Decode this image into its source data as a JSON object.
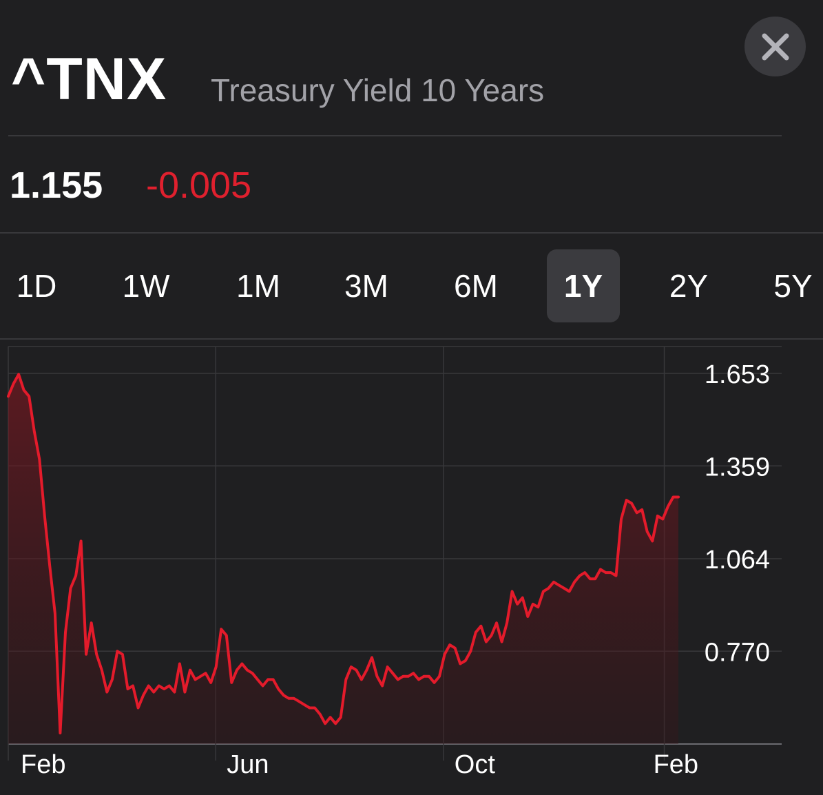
{
  "header": {
    "symbol": "^TNX",
    "name": "Treasury Yield 10 Years",
    "close_icon": "close-icon"
  },
  "quote": {
    "price": "1.155",
    "change": "-0.005",
    "change_color": "#e0202e"
  },
  "ranges": [
    {
      "label": "1D",
      "active": false
    },
    {
      "label": "1W",
      "active": false
    },
    {
      "label": "1M",
      "active": false
    },
    {
      "label": "3M",
      "active": false
    },
    {
      "label": "6M",
      "active": false
    },
    {
      "label": "1Y",
      "active": true
    },
    {
      "label": "2Y",
      "active": false
    },
    {
      "label": "5Y",
      "active": false
    }
  ],
  "chart_data": {
    "type": "area",
    "title": "",
    "xlabel": "",
    "ylabel": "",
    "y_ticks": [
      "1.653",
      "1.359",
      "1.064",
      "0.770"
    ],
    "y_tick_values": [
      1.653,
      1.359,
      1.064,
      0.77
    ],
    "x_tick_labels": [
      "Feb",
      "Jun",
      "Oct",
      "Feb"
    ],
    "ylim": [
      0.475,
      1.653
    ],
    "grid": true,
    "line_color": "#e41b2b",
    "series": [
      {
        "values": [
          1.58,
          1.62,
          1.65,
          1.6,
          1.58,
          1.47,
          1.38,
          1.2,
          1.04,
          0.89,
          0.51,
          0.83,
          0.97,
          1.01,
          1.12,
          0.76,
          0.86,
          0.76,
          0.71,
          0.64,
          0.68,
          0.77,
          0.76,
          0.65,
          0.66,
          0.59,
          0.63,
          0.66,
          0.64,
          0.66,
          0.65,
          0.66,
          0.64,
          0.73,
          0.64,
          0.71,
          0.68,
          0.69,
          0.7,
          0.67,
          0.72,
          0.84,
          0.82,
          0.67,
          0.71,
          0.73,
          0.71,
          0.7,
          0.68,
          0.66,
          0.68,
          0.68,
          0.65,
          0.63,
          0.62,
          0.62,
          0.61,
          0.6,
          0.59,
          0.59,
          0.57,
          0.54,
          0.56,
          0.54,
          0.56,
          0.68,
          0.72,
          0.71,
          0.68,
          0.71,
          0.75,
          0.69,
          0.66,
          0.72,
          0.7,
          0.68,
          0.69,
          0.69,
          0.7,
          0.68,
          0.69,
          0.69,
          0.67,
          0.69,
          0.76,
          0.79,
          0.78,
          0.73,
          0.74,
          0.77,
          0.83,
          0.85,
          0.8,
          0.82,
          0.86,
          0.8,
          0.86,
          0.96,
          0.92,
          0.94,
          0.88,
          0.92,
          0.91,
          0.96,
          0.97,
          0.99,
          0.98,
          0.97,
          0.96,
          0.99,
          1.01,
          1.02,
          1.0,
          1.0,
          1.03,
          1.02,
          1.02,
          1.01,
          1.19,
          1.25,
          1.24,
          1.21,
          1.22,
          1.15,
          1.12,
          1.2,
          1.19,
          1.23,
          1.26,
          1.26
        ]
      }
    ]
  }
}
